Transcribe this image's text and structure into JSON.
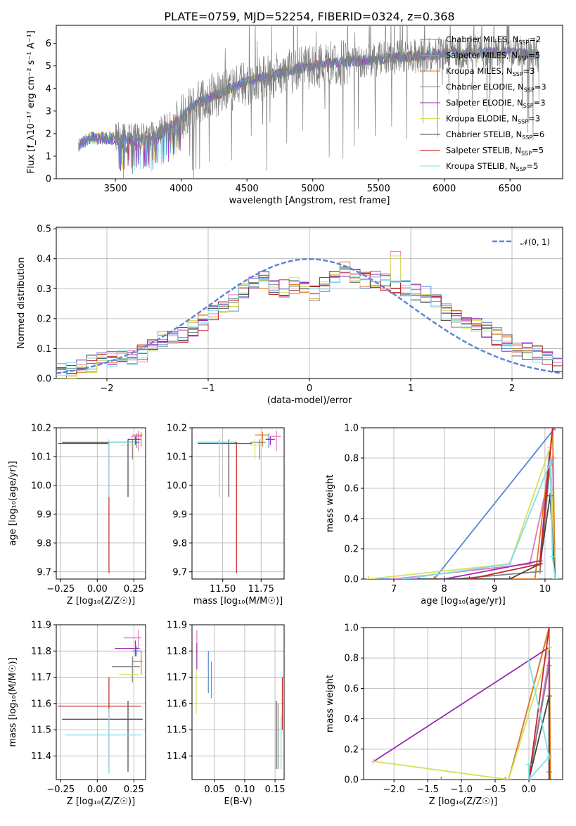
{
  "title": "PLATE=0759, MJD=52254, FIBERID=0324, z=0.368",
  "colors": {
    "Chabrier MILES": "#5b87d6",
    "Salpeter MILES": "#e377c2",
    "Kroupa MILES": "#e07b1f",
    "Chabrier ELODIE": "#7f7f7f",
    "Salpeter ELODIE": "#9c27b0",
    "Kroupa ELODIE": "#d4e157",
    "Chabrier STELIB": "#444444",
    "Salpeter STELIB": "#c62828",
    "Kroupa STELIB": "#80deea"
  },
  "chart_data": [
    {
      "type": "line",
      "id": "spectrum",
      "xlabel": "wavelength [Angstrom, rest frame]",
      "ylabel": "Flux [f_λ10⁻¹⁷ erg cm⁻² s⁻¹ A⁻¹]",
      "xlim": [
        3050,
        6900
      ],
      "ylim": [
        0,
        6.8
      ],
      "xticks": [
        3500,
        4000,
        4500,
        5000,
        5500,
        6000,
        6500
      ],
      "yticks": [
        0,
        1,
        2,
        3,
        4,
        5,
        6
      ],
      "legend_position": "upper-right",
      "series": [
        {
          "name": "Chabrier MILES, N_SSP=2"
        },
        {
          "name": "Salpeter MILES, N_SSP=5"
        },
        {
          "name": "Kroupa MILES, N_SSP=3"
        },
        {
          "name": "Chabrier ELODIE, N_SSP=3"
        },
        {
          "name": "Salpeter ELODIE, N_SSP=3"
        },
        {
          "name": "Kroupa ELODIE, N_SSP=3"
        },
        {
          "name": "Chabrier STELIB, N_SSP=6"
        },
        {
          "name": "Salpeter STELIB, N_SSP=5"
        },
        {
          "name": "Kroupa STELIB, N_SSP=5"
        }
      ],
      "continuum": {
        "x": [
          3220,
          3300,
          3500,
          3750,
          3950,
          4100,
          4300,
          4500,
          4700,
          4900,
          5100,
          5300,
          5500,
          5700,
          5900,
          6100,
          6300,
          6500,
          6700
        ],
        "y": [
          1.5,
          1.8,
          1.8,
          1.7,
          2.4,
          3.3,
          3.8,
          4.3,
          4.6,
          4.9,
          5.1,
          5.2,
          5.3,
          5.4,
          5.5,
          5.6,
          5.6,
          5.6,
          5.5
        ]
      }
    },
    {
      "type": "line",
      "id": "residual-histogram",
      "xlabel": "(data-model)/error",
      "ylabel": "Normed distribution",
      "xlim": [
        -2.5,
        2.5
      ],
      "ylim": [
        0,
        0.505
      ],
      "xticks": [
        -2,
        -1,
        0,
        1,
        2
      ],
      "yticks": [
        0.0,
        0.1,
        0.2,
        0.3,
        0.4,
        0.5
      ],
      "legend": [
        "𝒩(0, 1)"
      ],
      "bin_edges_range": [
        -2.5,
        2.5
      ],
      "n_bins": 50,
      "histogram_heights": [
        0.025,
        0.03,
        0.04,
        0.05,
        0.06,
        0.065,
        0.065,
        0.07,
        0.085,
        0.11,
        0.13,
        0.14,
        0.15,
        0.17,
        0.19,
        0.22,
        0.23,
        0.25,
        0.29,
        0.32,
        0.33,
        0.31,
        0.3,
        0.31,
        0.3,
        0.29,
        0.32,
        0.34,
        0.36,
        0.35,
        0.33,
        0.33,
        0.32,
        0.3,
        0.3,
        0.29,
        0.28,
        0.25,
        0.22,
        0.2,
        0.19,
        0.18,
        0.16,
        0.14,
        0.12,
        0.1,
        0.09,
        0.08,
        0.06,
        0.05
      ]
    },
    {
      "type": "scatter",
      "id": "age-vs-Z",
      "xlabel": "Z [log₁₀(Z/Z☉)]",
      "ylabel": "age [log₁₀(age/yr)]",
      "xlim": [
        -0.28,
        0.33
      ],
      "ylim": [
        9.675,
        10.2
      ],
      "xticks": [
        -0.25,
        0.0,
        0.25
      ],
      "yticks": [
        9.7,
        9.8,
        9.9,
        10.0,
        10.1,
        10.2
      ],
      "points": [
        {
          "series": "Chabrier MILES",
          "x": 0.27,
          "y": 10.16,
          "xerr": [
            0.03,
            0.03
          ],
          "yerr": [
            0.03,
            0.02
          ]
        },
        {
          "series": "Salpeter MILES",
          "x": 0.28,
          "y": 10.17,
          "xerr": [
            0.05,
            0.02
          ],
          "yerr": [
            0.05,
            0.02
          ]
        },
        {
          "series": "Kroupa MILES",
          "x": 0.3,
          "y": 10.175,
          "xerr": [
            0.06,
            0.01
          ],
          "yerr": [
            0.04,
            0.01
          ]
        },
        {
          "series": "Chabrier ELODIE",
          "x": 0.24,
          "y": 10.15,
          "xerr": [
            0.14,
            0.05
          ],
          "yerr": [
            0.06,
            0.01
          ]
        },
        {
          "series": "Salpeter ELODIE",
          "x": 0.26,
          "y": 10.16,
          "xerr": [
            0.05,
            0.03
          ],
          "yerr": [
            0.02,
            0.01
          ]
        },
        {
          "series": "Kroupa ELODIE",
          "x": 0.25,
          "y": 10.14,
          "xerr": [
            0.1,
            0.03
          ],
          "yerr": [
            0.05,
            0.02
          ]
        },
        {
          "series": "Chabrier STELIB",
          "x": 0.21,
          "y": 10.15,
          "xerr": [
            0.45,
            0.06
          ],
          "yerr": [
            0.19,
            0.01
          ]
        },
        {
          "series": "Salpeter STELIB",
          "x": 0.08,
          "y": 10.145,
          "xerr": [
            0.35,
            0.0
          ],
          "yerr": [
            0.45,
            0.005
          ]
        },
        {
          "series": "Kroupa STELIB",
          "x": 0.08,
          "y": 10.15,
          "xerr": [
            0.0,
            0.18
          ],
          "yerr": [
            0.19,
            0.01
          ]
        }
      ]
    },
    {
      "type": "scatter",
      "id": "age-vs-mass",
      "xlabel": "mass [log₁₀(M/M☉)]",
      "ylabel": "",
      "xlim": [
        11.3,
        11.9
      ],
      "ylim": [
        9.675,
        10.2
      ],
      "xticks": [
        11.5,
        11.75
      ],
      "yticks": [
        9.7,
        9.8,
        9.9,
        10.0,
        10.1,
        10.2
      ],
      "points": [
        {
          "series": "Chabrier MILES",
          "x": 11.8,
          "y": 10.16,
          "xerr": [
            0.02,
            0.02
          ],
          "yerr": [
            0.03,
            0.02
          ]
        },
        {
          "series": "Salpeter MILES",
          "x": 11.85,
          "y": 10.17,
          "xerr": [
            0.04,
            0.03
          ],
          "yerr": [
            0.05,
            0.02
          ]
        },
        {
          "series": "Kroupa MILES",
          "x": 11.76,
          "y": 10.175,
          "xerr": [
            0.05,
            0.04
          ],
          "yerr": [
            0.04,
            0.01
          ]
        },
        {
          "series": "Chabrier ELODIE",
          "x": 11.74,
          "y": 10.15,
          "xerr": [
            0.06,
            0.04
          ],
          "yerr": [
            0.06,
            0.01
          ]
        },
        {
          "series": "Salpeter ELODIE",
          "x": 11.81,
          "y": 10.16,
          "xerr": [
            0.03,
            0.03
          ],
          "yerr": [
            0.02,
            0.01
          ]
        },
        {
          "series": "Kroupa ELODIE",
          "x": 11.71,
          "y": 10.14,
          "xerr": [
            0.04,
            0.04
          ],
          "yerr": [
            0.05,
            0.02
          ]
        },
        {
          "series": "Chabrier STELIB",
          "x": 11.54,
          "y": 10.15,
          "xerr": [
            0.2,
            0.05
          ],
          "yerr": [
            0.19,
            0.01
          ]
        },
        {
          "series": "Salpeter STELIB",
          "x": 11.59,
          "y": 10.145,
          "xerr": [
            0.25,
            0.1
          ],
          "yerr": [
            0.45,
            0.005
          ]
        },
        {
          "series": "Kroupa STELIB",
          "x": 11.48,
          "y": 10.15,
          "xerr": [
            0.15,
            0.1
          ],
          "yerr": [
            0.19,
            0.01
          ]
        }
      ]
    },
    {
      "type": "line",
      "id": "mass-weight-vs-age",
      "xlabel": "age [log₁₀(age/yr)]",
      "ylabel": "mass weight",
      "xlim": [
        6.4,
        10.35
      ],
      "ylim": [
        0,
        1.0
      ],
      "xticks": [
        7,
        8,
        9,
        10
      ],
      "yticks": [
        0.0,
        0.2,
        0.4,
        0.6,
        0.8,
        1.0
      ],
      "series": [
        {
          "name": "Chabrier MILES",
          "x": [
            6.5,
            7.8,
            10.2
          ],
          "y": [
            0.0,
            0.0,
            1.0
          ]
        },
        {
          "name": "Salpeter MILES",
          "x": [
            7.0,
            9.7,
            10.15,
            10.2
          ],
          "y": [
            0.0,
            0.1,
            0.8,
            0.0
          ]
        },
        {
          "name": "Kroupa MILES",
          "x": [
            7.8,
            9.8,
            10.15,
            10.2
          ],
          "y": [
            0.0,
            0.0,
            1.0,
            0.0
          ]
        },
        {
          "name": "Chabrier ELODIE",
          "x": [
            8.2,
            9.9,
            10.1,
            10.2
          ],
          "y": [
            0.0,
            0.05,
            0.75,
            0.0
          ]
        },
        {
          "name": "Salpeter ELODIE",
          "x": [
            8.0,
            9.9,
            10.1,
            10.2
          ],
          "y": [
            0.0,
            0.12,
            0.87,
            0.0
          ]
        },
        {
          "name": "Kroupa ELODIE",
          "x": [
            6.5,
            9.3,
            10.1,
            10.2
          ],
          "y": [
            0.0,
            0.1,
            0.87,
            0.0
          ]
        },
        {
          "name": "Chabrier STELIB",
          "x": [
            7.5,
            9.3,
            9.9,
            10.1,
            10.2
          ],
          "y": [
            0.0,
            0.0,
            0.1,
            0.55,
            0.0
          ]
        },
        {
          "name": "Salpeter STELIB",
          "x": [
            8.5,
            9.9,
            10.15
          ],
          "y": [
            0.0,
            0.1,
            1.0
          ]
        },
        {
          "name": "Kroupa STELIB",
          "x": [
            7.2,
            9.3,
            10.1,
            10.15,
            10.2
          ],
          "y": [
            0.0,
            0.1,
            0.77,
            0.15,
            0.0
          ]
        }
      ]
    },
    {
      "type": "scatter",
      "id": "mass-vs-Z",
      "xlabel": "Z [log₁₀(Z/Z☉)]",
      "ylabel": "mass [log₁₀(M/M☉)]",
      "xlim": [
        -0.28,
        0.33
      ],
      "ylim": [
        11.31,
        11.9
      ],
      "xticks": [
        -0.25,
        0.0,
        0.25
      ],
      "yticks": [
        11.4,
        11.5,
        11.6,
        11.7,
        11.8,
        11.9
      ],
      "points": [
        {
          "series": "Chabrier MILES",
          "x": 0.27,
          "y": 11.8,
          "xerr": [
            0.03,
            0.03
          ],
          "yerr": [
            0.02,
            0.02
          ]
        },
        {
          "series": "Salpeter MILES",
          "x": 0.28,
          "y": 11.85,
          "xerr": [
            0.1,
            0.02
          ],
          "yerr": [
            0.04,
            0.03
          ]
        },
        {
          "series": "Kroupa MILES",
          "x": 0.3,
          "y": 11.76,
          "xerr": [
            0.06,
            0.01
          ],
          "yerr": [
            0.05,
            0.04
          ]
        },
        {
          "series": "Chabrier ELODIE",
          "x": 0.24,
          "y": 11.74,
          "xerr": [
            0.14,
            0.05
          ],
          "yerr": [
            0.06,
            0.04
          ]
        },
        {
          "series": "Salpeter ELODIE",
          "x": 0.26,
          "y": 11.81,
          "xerr": [
            0.14,
            0.03
          ],
          "yerr": [
            0.03,
            0.03
          ]
        },
        {
          "series": "Kroupa ELODIE",
          "x": 0.25,
          "y": 11.71,
          "xerr": [
            0.1,
            0.03
          ],
          "yerr": [
            0.04,
            0.04
          ]
        },
        {
          "series": "Chabrier STELIB",
          "x": 0.21,
          "y": 11.54,
          "xerr": [
            0.45,
            0.1
          ],
          "yerr": [
            0.2,
            0.07
          ]
        },
        {
          "series": "Salpeter STELIB",
          "x": 0.08,
          "y": 11.59,
          "xerr": [
            0.35,
            0.22
          ],
          "yerr": [
            0.25,
            0.11
          ]
        },
        {
          "series": "Kroupa STELIB",
          "x": 0.08,
          "y": 11.48,
          "xerr": [
            0.3,
            0.22
          ],
          "yerr": [
            0.15,
            0.1
          ]
        }
      ]
    },
    {
      "type": "scatter",
      "id": "mass-vs-EBV",
      "xlabel": "E(B-V)",
      "ylabel": "",
      "xlim": [
        0.013,
        0.165
      ],
      "ylim": [
        11.31,
        11.9
      ],
      "xticks": [
        0.05,
        0.1,
        0.15
      ],
      "yticks": [
        11.4,
        11.5,
        11.6,
        11.7,
        11.8,
        11.9
      ],
      "points": [
        {
          "series": "Chabrier MILES",
          "x": 0.04,
          "y": 11.74,
          "yerr": [
            0.1,
            0.06
          ]
        },
        {
          "series": "Salpeter MILES",
          "x": 0.021,
          "y": 11.83,
          "yerr": [
            0.07,
            0.05
          ]
        },
        {
          "series": "Kroupa MILES",
          "x": 0.045,
          "y": 11.7,
          "yerr": [
            0.08,
            0.06
          ]
        },
        {
          "series": "Chabrier ELODIE",
          "x": 0.155,
          "y": 11.45,
          "yerr": [
            0.1,
            0.15
          ]
        },
        {
          "series": "Salpeter ELODIE",
          "x": 0.021,
          "y": 11.78,
          "yerr": [
            0.05,
            0.05
          ]
        },
        {
          "series": "Kroupa ELODIE",
          "x": 0.02,
          "y": 11.66,
          "yerr": [
            0.1,
            0.07
          ]
        },
        {
          "series": "Chabrier STELIB",
          "x": 0.152,
          "y": 11.48,
          "yerr": [
            0.13,
            0.13
          ]
        },
        {
          "series": "Salpeter STELIB",
          "x": 0.162,
          "y": 11.6,
          "yerr": [
            0.1,
            0.1
          ]
        },
        {
          "series": "Kroupa STELIB",
          "x": 0.16,
          "y": 11.45,
          "yerr": [
            0.1,
            0.1
          ]
        }
      ]
    },
    {
      "type": "line",
      "id": "mass-weight-vs-Z",
      "xlabel": "Z [log₁₀(Z/Z☉)]",
      "ylabel": "mass weight",
      "xlim": [
        -2.45,
        0.5
      ],
      "ylim": [
        0,
        1.0
      ],
      "xticks": [
        -2.0,
        -1.5,
        -1.0,
        -0.5,
        0.0
      ],
      "yticks": [
        0.0,
        0.2,
        0.4,
        0.6,
        0.8,
        1.0
      ],
      "series": [
        {
          "name": "Chabrier MILES",
          "x": [
            -1.3,
            -0.3,
            0.3
          ],
          "y": [
            0.0,
            0.0,
            1.0
          ]
        },
        {
          "name": "Salpeter MILES",
          "x": [
            -0.35,
            0.0,
            0.3
          ],
          "y": [
            0.0,
            0.0,
            0.8
          ]
        },
        {
          "name": "Kroupa MILES",
          "x": [
            -1.3,
            -0.3,
            0.3,
            0.32
          ],
          "y": [
            0.0,
            0.0,
            1.0,
            0.0
          ]
        },
        {
          "name": "Chabrier ELODIE",
          "x": [
            -0.35,
            0.0,
            0.3,
            0.3
          ],
          "y": [
            0.0,
            0.0,
            0.75,
            0.05
          ]
        },
        {
          "name": "Salpeter ELODIE",
          "x": [
            -2.3,
            0.3,
            0.3
          ],
          "y": [
            0.12,
            0.87,
            0.0
          ]
        },
        {
          "name": "Kroupa ELODIE",
          "x": [
            -2.3,
            -0.3,
            0.3
          ],
          "y": [
            0.12,
            0.0,
            0.87
          ]
        },
        {
          "name": "Chabrier STELIB",
          "x": [
            0.0,
            0.3,
            0.3
          ],
          "y": [
            0.0,
            0.55,
            0.0
          ]
        },
        {
          "name": "Salpeter STELIB",
          "x": [
            0.0,
            0.3
          ],
          "y": [
            0.0,
            1.0
          ]
        },
        {
          "name": "Kroupa STELIB",
          "x": [
            0.0,
            0.3,
            0.0,
            0.0
          ],
          "y": [
            0.78,
            0.15,
            0.0,
            0.1
          ]
        }
      ]
    }
  ]
}
